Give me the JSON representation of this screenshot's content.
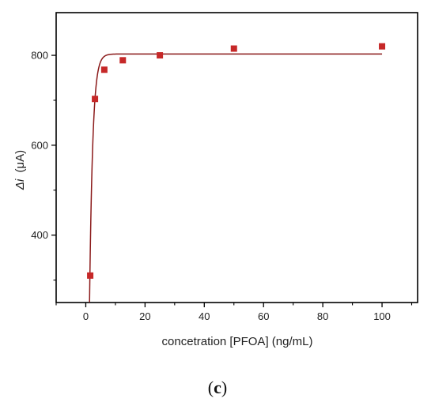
{
  "chart_data": {
    "type": "scatter",
    "xlabel": "concetration [PFOA] (ng/mL)",
    "ylabel_symbol": "Δi",
    "ylabel_unit": "(μA)",
    "xlim": [
      -10,
      112
    ],
    "ylim": [
      250,
      895
    ],
    "x_ticks": [
      0,
      20,
      40,
      60,
      80,
      100
    ],
    "y_ticks": [
      400,
      600,
      800
    ],
    "x_tick_labels": [
      "0",
      "20",
      "40",
      "60",
      "80",
      "100"
    ],
    "y_tick_labels": [
      "400",
      "600",
      "800"
    ],
    "series": [
      {
        "points": [
          {
            "x": 1.5,
            "y": 310
          },
          {
            "x": 3.1,
            "y": 703
          },
          {
            "x": 6.25,
            "y": 768
          },
          {
            "x": 12.5,
            "y": 789
          },
          {
            "x": 25,
            "y": 800
          },
          {
            "x": 50,
            "y": 815
          },
          {
            "x": 100,
            "y": 820
          }
        ]
      }
    ],
    "fit_curve": {
      "model": "exponential-rise",
      "plateau": 803,
      "amplitude": 1800,
      "rate": 0.93,
      "x_range": [
        1.2,
        100
      ]
    },
    "marker_color": "#c62828",
    "line_color": "#8b1a1a",
    "grid": false,
    "legend": "none"
  },
  "panel_label": {
    "open": "(",
    "letter": "c",
    "close": ")"
  }
}
